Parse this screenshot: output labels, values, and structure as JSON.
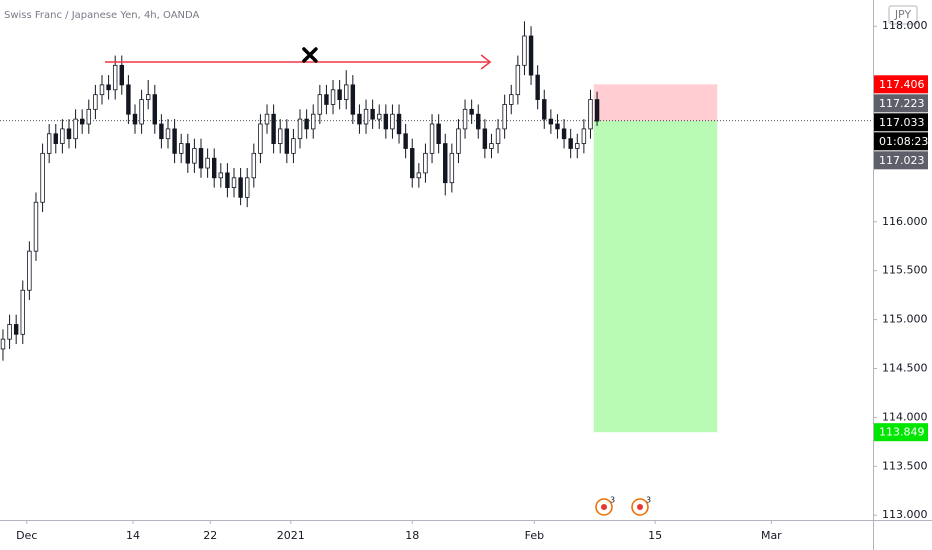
{
  "chart_data": {
    "type": "candlestick",
    "title": "Swiss Franc / Japanese Yen, 4h, OANDA",
    "currency": "JPY",
    "color": "#131722",
    "open": [
      114.7,
      114.8,
      114.95,
      114.85,
      115.3,
      115.7,
      116.2,
      116.7,
      116.9,
      116.8,
      116.95,
      116.85,
      117.05,
      117.0,
      117.15,
      117.3,
      117.4,
      117.35,
      117.6,
      117.4,
      117.1,
      117.0,
      117.25,
      117.3,
      117.0,
      116.85,
      116.95,
      116.7,
      116.8,
      116.6,
      116.75,
      116.55,
      116.65,
      116.45,
      116.5,
      116.35,
      116.45,
      116.25,
      116.45,
      116.7,
      117.0,
      117.1,
      116.8,
      116.95,
      116.7,
      116.85,
      117.05,
      116.95,
      117.1,
      117.3,
      117.2,
      117.35,
      117.25,
      117.4,
      117.1,
      117.0,
      117.15,
      117.05,
      117.1,
      116.95,
      117.1,
      116.9,
      116.75,
      116.45,
      116.5,
      116.7,
      117.0,
      116.8,
      116.4,
      116.7,
      116.95,
      117.15,
      117.1,
      116.95,
      116.75,
      116.8,
      116.95,
      117.2,
      117.3,
      117.6,
      117.9,
      117.5,
      117.25,
      117.05,
      117.0,
      116.95,
      116.85,
      116.75,
      116.8,
      116.95,
      117.25
    ],
    "high": [
      114.9,
      115.05,
      115.05,
      115.4,
      115.8,
      116.3,
      116.8,
      117.0,
      117.0,
      117.05,
      117.05,
      117.15,
      117.15,
      117.25,
      117.4,
      117.5,
      117.5,
      117.7,
      117.7,
      117.5,
      117.2,
      117.35,
      117.45,
      117.4,
      117.1,
      117.05,
      117.05,
      116.9,
      116.9,
      116.85,
      116.85,
      116.75,
      116.75,
      116.6,
      116.6,
      116.55,
      116.55,
      116.55,
      116.8,
      117.1,
      117.2,
      117.2,
      117.05,
      117.05,
      116.95,
      117.15,
      117.15,
      117.2,
      117.4,
      117.4,
      117.45,
      117.45,
      117.55,
      117.5,
      117.2,
      117.25,
      117.25,
      117.2,
      117.2,
      117.2,
      117.2,
      117.0,
      116.85,
      116.6,
      116.8,
      117.1,
      117.1,
      116.9,
      116.8,
      117.05,
      117.25,
      117.25,
      117.2,
      117.05,
      116.9,
      117.05,
      117.3,
      117.4,
      117.7,
      118.05,
      118.0,
      117.6,
      117.35,
      117.15,
      117.1,
      117.05,
      116.95,
      116.9,
      117.05,
      117.35,
      117.33
    ],
    "low": [
      114.58,
      114.7,
      114.75,
      114.75,
      115.2,
      115.6,
      116.1,
      116.6,
      116.7,
      116.7,
      116.75,
      116.75,
      116.9,
      116.9,
      117.05,
      117.2,
      117.25,
      117.25,
      117.3,
      117.0,
      116.9,
      116.9,
      117.15,
      116.9,
      116.75,
      116.75,
      116.6,
      116.6,
      116.5,
      116.5,
      116.45,
      116.45,
      116.35,
      116.35,
      116.25,
      116.25,
      116.17,
      116.15,
      116.35,
      116.6,
      116.9,
      116.7,
      116.7,
      116.6,
      116.6,
      116.75,
      116.85,
      116.85,
      117.0,
      117.1,
      117.1,
      117.15,
      117.15,
      117.0,
      116.9,
      116.9,
      116.95,
      116.95,
      116.85,
      116.85,
      116.8,
      116.65,
      116.35,
      116.35,
      116.4,
      116.6,
      116.7,
      116.27,
      116.3,
      116.6,
      116.85,
      117.0,
      116.85,
      116.65,
      116.65,
      116.7,
      116.85,
      117.1,
      117.2,
      117.5,
      117.4,
      117.15,
      116.95,
      116.9,
      116.85,
      116.75,
      116.65,
      116.65,
      116.7,
      116.85,
      116.98
    ],
    "close": [
      114.8,
      114.95,
      114.85,
      115.3,
      115.7,
      116.2,
      116.7,
      116.9,
      116.8,
      116.95,
      116.85,
      117.05,
      117.0,
      117.15,
      117.3,
      117.4,
      117.35,
      117.6,
      117.4,
      117.1,
      117.0,
      117.25,
      117.3,
      117.0,
      116.85,
      116.95,
      116.7,
      116.8,
      116.6,
      116.75,
      116.55,
      116.65,
      116.45,
      116.5,
      116.35,
      116.45,
      116.25,
      116.45,
      116.7,
      117.0,
      117.1,
      116.8,
      116.95,
      116.7,
      116.85,
      117.05,
      116.95,
      117.1,
      117.3,
      117.2,
      117.35,
      117.25,
      117.4,
      117.1,
      117.0,
      117.15,
      117.05,
      117.1,
      116.95,
      117.1,
      116.9,
      116.75,
      116.45,
      116.5,
      116.7,
      117.0,
      116.8,
      116.4,
      116.7,
      116.95,
      117.15,
      117.1,
      116.95,
      116.75,
      116.8,
      116.95,
      117.2,
      117.3,
      117.6,
      117.9,
      117.5,
      117.25,
      117.05,
      117.0,
      116.95,
      116.85,
      116.75,
      116.8,
      116.95,
      117.25,
      117.03
    ],
    "xlim": [
      -0.45,
      131.8
    ],
    "xticks": [
      {
        "value": 3.6,
        "label": "Dec"
      },
      {
        "value": 19.7,
        "label": "14"
      },
      {
        "value": 31.4,
        "label": "22"
      },
      {
        "value": 43.6,
        "label": "2021"
      },
      {
        "value": 62.0,
        "label": "18"
      },
      {
        "value": 80.5,
        "label": "Feb"
      },
      {
        "value": 98.8,
        "label": "15"
      },
      {
        "value": 116.4,
        "label": "Mar"
      }
    ],
    "ylim": [
      112.951,
      118.268
    ],
    "yticks": [
      {
        "value": 113,
        "label": "113.000"
      },
      {
        "value": 113.5,
        "label": "113.500"
      },
      {
        "value": 114,
        "label": "114.000"
      },
      {
        "value": 114.5,
        "label": "114.500"
      },
      {
        "value": 115,
        "label": "115.000"
      },
      {
        "value": 115.5,
        "label": "115.500"
      },
      {
        "value": 116,
        "label": "116.000"
      },
      {
        "value": 118,
        "label": "118.000"
      }
    ],
    "level_arrow": {
      "value": 117.634,
      "x": [
        15.45,
        73.8
      ],
      "color": "#f23645"
    },
    "cross": {
      "value": 117.706,
      "x": 46.5
    },
    "position": {
      "stop": 117.406,
      "entry": 117.033,
      "target": 113.849,
      "x": [
        89.5,
        108.2
      ],
      "stop_color": "#ffcdd2",
      "target_color": "#b9fbb4"
    },
    "price_tags": [
      {
        "value": 117.406,
        "color": "#ff0000"
      },
      {
        "value": 117.223,
        "color": "#5d606b"
      },
      {
        "value": 117.033,
        "color": "#000000"
      },
      {
        "value": 117.023,
        "color": "#5d606b"
      },
      {
        "value": 113.849,
        "color": "#00e600"
      }
    ],
    "countdown": "01:08:23",
    "event_badges": [
      "3",
      "3"
    ]
  }
}
